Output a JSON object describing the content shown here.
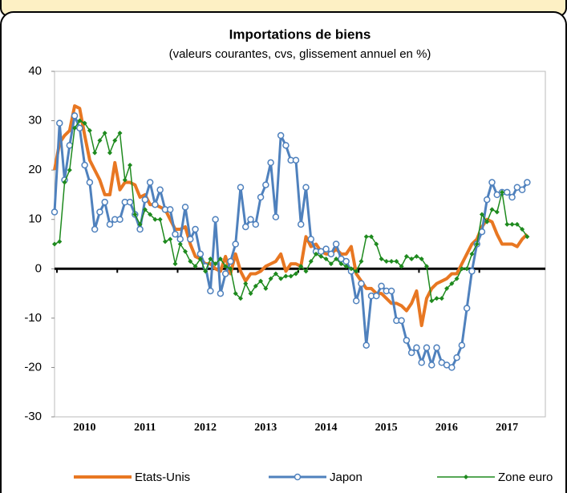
{
  "chart_data": {
    "type": "line",
    "title": "Importations de biens",
    "subtitle": "(valeurs courantes, cvs, glissement annuel en %)",
    "categories": [
      "2010",
      null,
      null,
      null,
      null,
      null,
      null,
      null,
      null,
      null,
      null,
      null,
      "2011",
      null,
      null,
      null,
      null,
      null,
      null,
      null,
      null,
      null,
      null,
      null,
      "2012",
      null,
      null,
      null,
      null,
      null,
      null,
      null,
      null,
      null,
      null,
      null,
      "2013",
      null,
      null,
      null,
      null,
      null,
      null,
      null,
      null,
      null,
      null,
      null,
      "2014",
      null,
      null,
      null,
      null,
      null,
      null,
      null,
      null,
      null,
      null,
      null,
      "2015",
      null,
      null,
      null,
      null,
      null,
      null,
      null,
      null,
      null,
      null,
      null,
      "2016",
      null,
      null,
      null,
      null,
      null,
      null,
      null,
      null,
      null,
      null,
      null,
      "2017",
      null,
      null,
      null,
      null,
      null,
      null,
      null,
      null,
      null,
      null
    ],
    "series": [
      {
        "name": "Etats-Unis",
        "color": "#e87722",
        "marker": null,
        "values": [
          20,
          25.5,
          27,
          28,
          33,
          32.5,
          27,
          22,
          20,
          18,
          15,
          15,
          21.5,
          16,
          17.5,
          17.5,
          17,
          14.5,
          15,
          13,
          13,
          12.5,
          12,
          10,
          8,
          8,
          8.5,
          5,
          2.5,
          2,
          1,
          1,
          0,
          -0.5,
          2.5,
          -1,
          3,
          -0.5,
          -2.5,
          -1,
          -1,
          -0.5,
          0.5,
          1,
          1.5,
          3,
          -0.5,
          1,
          1,
          0.5,
          6.5,
          4.5,
          5,
          3.5,
          3,
          3,
          4,
          3,
          3,
          4.5,
          -1,
          -2.5,
          -4,
          -4,
          -5,
          -5,
          -6,
          -7,
          -7,
          -7.5,
          -8.5,
          -7,
          -4.5,
          -11.5,
          -6,
          -4,
          -3,
          -2.5,
          -2,
          -1,
          -1,
          1,
          3,
          5,
          6,
          8.5,
          10,
          9.5,
          7,
          5,
          5,
          5,
          4.5,
          6,
          7
        ]
      },
      {
        "name": "Japon",
        "color": "#4f81bd",
        "marker": "circle",
        "values": [
          11.5,
          29.5,
          18,
          25,
          31,
          28.5,
          21,
          17.5,
          8,
          11.5,
          13.5,
          9,
          10,
          10,
          13.5,
          13.5,
          11,
          8,
          14,
          17.5,
          13,
          16,
          12,
          12,
          7,
          6,
          12.5,
          6,
          8,
          3,
          0.5,
          -4.5,
          10,
          -5,
          -1,
          1.5,
          5,
          16.5,
          8.5,
          10,
          9,
          14.5,
          17,
          21.5,
          10.5,
          27,
          25,
          22,
          22,
          9,
          16.5,
          6,
          3.5,
          3.5,
          4,
          3,
          5,
          2,
          1.5,
          -0.5,
          -6.5,
          -3,
          -15.5,
          -5.5,
          -5.5,
          -3.5,
          -4.5,
          -4.5,
          -10.5,
          -10.5,
          -14.5,
          -17,
          -16,
          -19,
          -16,
          -19.5,
          -16,
          -19,
          -19.5,
          -20,
          -18,
          -15.5,
          -8,
          -0.5,
          5,
          7.5,
          14,
          17.5,
          15,
          15.5,
          15.5,
          14.5,
          16.5,
          16,
          17.5
        ]
      },
      {
        "name": "Zone euro",
        "color": "#1e8a1e",
        "marker": "diamond",
        "values": [
          5,
          5.5,
          17.5,
          20,
          28.5,
          30,
          29.5,
          28,
          23.5,
          26,
          27.5,
          23.5,
          26,
          27.5,
          18,
          21,
          11,
          9,
          12,
          11,
          10,
          10,
          5.5,
          6,
          1,
          5,
          3.5,
          1.5,
          0.5,
          2,
          -0.5,
          2,
          1,
          2,
          0.5,
          0,
          -5,
          -6,
          -3,
          -5,
          -3.5,
          -2.5,
          -4,
          -2,
          -1,
          -2,
          -1.5,
          -1.5,
          -1,
          0.5,
          -0.5,
          1.5,
          3,
          2.5,
          2,
          1,
          2,
          1,
          0.5,
          0,
          -0.5,
          1.5,
          6.5,
          6.5,
          5,
          2,
          1.5,
          1.5,
          1.5,
          0.5,
          2.5,
          2,
          2.5,
          2,
          0.5,
          -6.5,
          -6,
          -6,
          -4,
          -3,
          -2,
          0,
          0,
          3,
          5,
          11,
          9.5,
          12,
          11.5,
          15.5,
          9,
          9,
          9,
          8,
          6.5
        ]
      }
    ],
    "ylim": [
      -30,
      40
    ],
    "yticks": [
      -30,
      -20,
      -10,
      0,
      10,
      20,
      30,
      40
    ],
    "grid": false,
    "legend": "bottom"
  }
}
